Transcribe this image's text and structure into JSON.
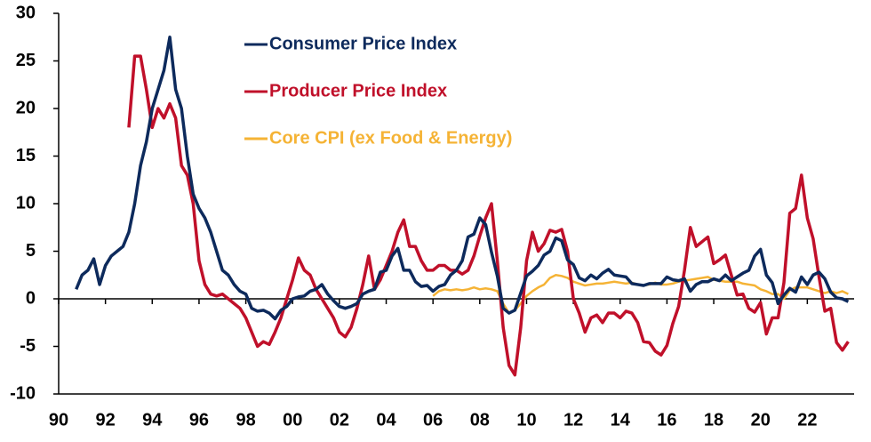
{
  "chart_data": {
    "type": "line",
    "x": [
      1990.75,
      1991,
      1991.25,
      1991.5,
      1991.75,
      1992,
      1992.25,
      1992.5,
      1992.75,
      1993,
      1993.25,
      1993.5,
      1993.75,
      1994,
      1994.25,
      1994.5,
      1994.75,
      1995,
      1995.25,
      1995.5,
      1995.75,
      1996,
      1996.25,
      1996.5,
      1996.75,
      1997,
      1997.25,
      1997.5,
      1997.75,
      1998,
      1998.25,
      1998.5,
      1998.75,
      1999,
      1999.25,
      1999.5,
      1999.75,
      2000,
      2000.25,
      2000.5,
      2000.75,
      2001,
      2001.25,
      2001.5,
      2001.75,
      2002,
      2002.25,
      2002.5,
      2002.75,
      2003,
      2003.25,
      2003.5,
      2003.75,
      2004,
      2004.25,
      2004.5,
      2004.75,
      2005,
      2005.25,
      2005.5,
      2005.75,
      2006,
      2006.25,
      2006.5,
      2006.75,
      2007,
      2007.25,
      2007.5,
      2007.75,
      2008,
      2008.25,
      2008.5,
      2008.75,
      2009,
      2009.25,
      2009.5,
      2009.75,
      2010,
      2010.25,
      2010.5,
      2010.75,
      2011,
      2011.25,
      2011.5,
      2011.75,
      2012,
      2012.25,
      2012.5,
      2012.75,
      2013,
      2013.25,
      2013.5,
      2013.75,
      2014,
      2014.25,
      2014.5,
      2014.75,
      2015,
      2015.25,
      2015.5,
      2015.75,
      2016,
      2016.25,
      2016.5,
      2016.75,
      2017,
      2017.25,
      2017.5,
      2017.75,
      2018,
      2018.25,
      2018.5,
      2018.75,
      2019,
      2019.25,
      2019.5,
      2019.75,
      2020,
      2020.25,
      2020.5,
      2020.75,
      2021,
      2021.25,
      2021.5,
      2021.75,
      2022,
      2022.25,
      2022.5,
      2022.75,
      2023,
      2023.25,
      2023.5,
      2023.75
    ],
    "series": [
      {
        "name": "Consumer Price Index",
        "color": "#0d2a5c",
        "values": [
          1,
          2.5,
          3,
          4.2,
          1.5,
          3.5,
          4.5,
          5,
          5.5,
          7,
          10,
          14,
          16.5,
          20,
          22,
          24,
          27.5,
          22,
          20,
          15,
          11,
          9.5,
          8.5,
          7,
          5,
          3,
          2.5,
          1.5,
          0.8,
          0.5,
          -1,
          -1.3,
          -1.2,
          -1.5,
          -2.1,
          -1.2,
          -0.8,
          0,
          0.2,
          0.3,
          0.8,
          1,
          1.5,
          0.5,
          -0.2,
          -0.8,
          -1,
          -0.8,
          -0.5,
          0.5,
          0.8,
          1,
          2.8,
          3,
          4.5,
          5.3,
          3,
          3,
          1.8,
          1.3,
          1.4,
          0.8,
          1.3,
          1.5,
          2.5,
          3,
          4,
          6.5,
          6.8,
          8.5,
          7.8,
          4.9,
          2.4,
          -1,
          -1.5,
          -1.2,
          0.6,
          2.4,
          2.9,
          3.5,
          4.6,
          5,
          6.4,
          6.1,
          4.1,
          3.6,
          2.2,
          1.9,
          2.5,
          2.1,
          2.7,
          3.1,
          2.5,
          2.4,
          2.3,
          1.6,
          1.5,
          1.4,
          1.6,
          1.6,
          1.6,
          2.3,
          2,
          1.9,
          2.1,
          0.8,
          1.5,
          1.8,
          1.8,
          2.1,
          1.9,
          2.5,
          1.9,
          2.3,
          2.7,
          3,
          4.5,
          5.2,
          2.5,
          1.7,
          -0.5,
          0.4,
          1.1,
          0.7,
          2.3,
          1.5,
          2.5,
          2.8,
          2.1,
          0.7,
          0.1,
          0,
          -0.3
        ]
      },
      {
        "name": "Producer Price Index",
        "color": "#c0102a",
        "values": [
          null,
          null,
          null,
          null,
          null,
          null,
          null,
          null,
          null,
          18,
          25.5,
          25.5,
          22,
          18,
          20,
          19,
          20.5,
          19,
          14,
          13,
          10,
          4,
          1.5,
          0.5,
          0.3,
          0.5,
          0,
          -0.5,
          -1,
          -2,
          -3.5,
          -5,
          -4.5,
          -4.8,
          -3.5,
          -2,
          0,
          2,
          4.3,
          3,
          2.5,
          1,
          0,
          -1,
          -2,
          -3.5,
          -4,
          -3,
          -1,
          1.5,
          4.5,
          1,
          2,
          3.5,
          5,
          7,
          8.3,
          5.5,
          5.5,
          4,
          3,
          3,
          3.5,
          3.5,
          3,
          3,
          2.6,
          3,
          4.5,
          6.6,
          8.5,
          10,
          4,
          -3,
          -7,
          -8,
          -3,
          4,
          7,
          5,
          5.8,
          7.2,
          7,
          7.3,
          5,
          0,
          -1.5,
          -3.5,
          -2,
          -1.7,
          -2.5,
          -1.5,
          -1.5,
          -2,
          -1.3,
          -1.5,
          -2.5,
          -4.5,
          -4.6,
          -5.5,
          -5.9,
          -4.9,
          -2.6,
          -0.8,
          3,
          7.5,
          5.5,
          6,
          6.5,
          3.7,
          4.1,
          4.6,
          2.5,
          0.4,
          0.5,
          -1,
          -1.4,
          -0.4,
          -3.7,
          -2,
          -2,
          1.7,
          9,
          9.5,
          13,
          8.5,
          6.3,
          2.3,
          -1.3,
          -1,
          -4.6,
          -5.4,
          -4.5
        ]
      },
      {
        "name": "Core CPI (ex Food & Energy)",
        "color": "#f5b335",
        "values": [
          null,
          null,
          null,
          null,
          null,
          null,
          null,
          null,
          null,
          null,
          null,
          null,
          null,
          null,
          null,
          null,
          null,
          null,
          null,
          null,
          null,
          null,
          null,
          null,
          null,
          null,
          null,
          null,
          null,
          null,
          null,
          null,
          null,
          null,
          null,
          null,
          null,
          null,
          null,
          null,
          null,
          null,
          null,
          null,
          null,
          null,
          null,
          null,
          null,
          null,
          null,
          null,
          null,
          null,
          null,
          null,
          null,
          null,
          null,
          null,
          null,
          0.3,
          0.8,
          1,
          0.9,
          1,
          0.9,
          1,
          1.2,
          1,
          1.1,
          1,
          0.8,
          -0.5,
          -1.5,
          -1.2,
          -0.5,
          0.3,
          0.8,
          1.2,
          1.5,
          2.2,
          2.5,
          2.4,
          2.2,
          1.8,
          1.6,
          1.4,
          1.5,
          1.6,
          1.6,
          1.7,
          1.8,
          1.7,
          1.6,
          1.7,
          1.5,
          1.4,
          1.5,
          1.7,
          1.5,
          1.5,
          1.6,
          1.8,
          1.9,
          2,
          2.1,
          2.2,
          2.3,
          2,
          1.9,
          1.8,
          1.8,
          1.8,
          1.6,
          1.5,
          1.4,
          1,
          0.8,
          0.5,
          0.5,
          0,
          0.9,
          1.2,
          1.2,
          1.2,
          1,
          0.8,
          0.6,
          0.8,
          0.6,
          0.8,
          0.5
        ]
      }
    ],
    "xlim": [
      1990,
      2024
    ],
    "xticks": [
      {
        "value": 1990,
        "label": "90"
      },
      {
        "value": 1992,
        "label": "92"
      },
      {
        "value": 1994,
        "label": "94"
      },
      {
        "value": 1996,
        "label": "96"
      },
      {
        "value": 1998,
        "label": "98"
      },
      {
        "value": 2000,
        "label": "00"
      },
      {
        "value": 2002,
        "label": "02"
      },
      {
        "value": 2004,
        "label": "04"
      },
      {
        "value": 2006,
        "label": "06"
      },
      {
        "value": 2008,
        "label": "08"
      },
      {
        "value": 2010,
        "label": "10"
      },
      {
        "value": 2012,
        "label": "12"
      },
      {
        "value": 2014,
        "label": "14"
      },
      {
        "value": 2016,
        "label": "16"
      },
      {
        "value": 2018,
        "label": "18"
      },
      {
        "value": 2020,
        "label": "20"
      },
      {
        "value": 2022,
        "label": "22"
      }
    ],
    "ylim": [
      -10,
      30
    ],
    "yticks": [
      -10,
      -5,
      0,
      5,
      10,
      15,
      20,
      25,
      30
    ],
    "legend": "upper center",
    "grid": false
  }
}
